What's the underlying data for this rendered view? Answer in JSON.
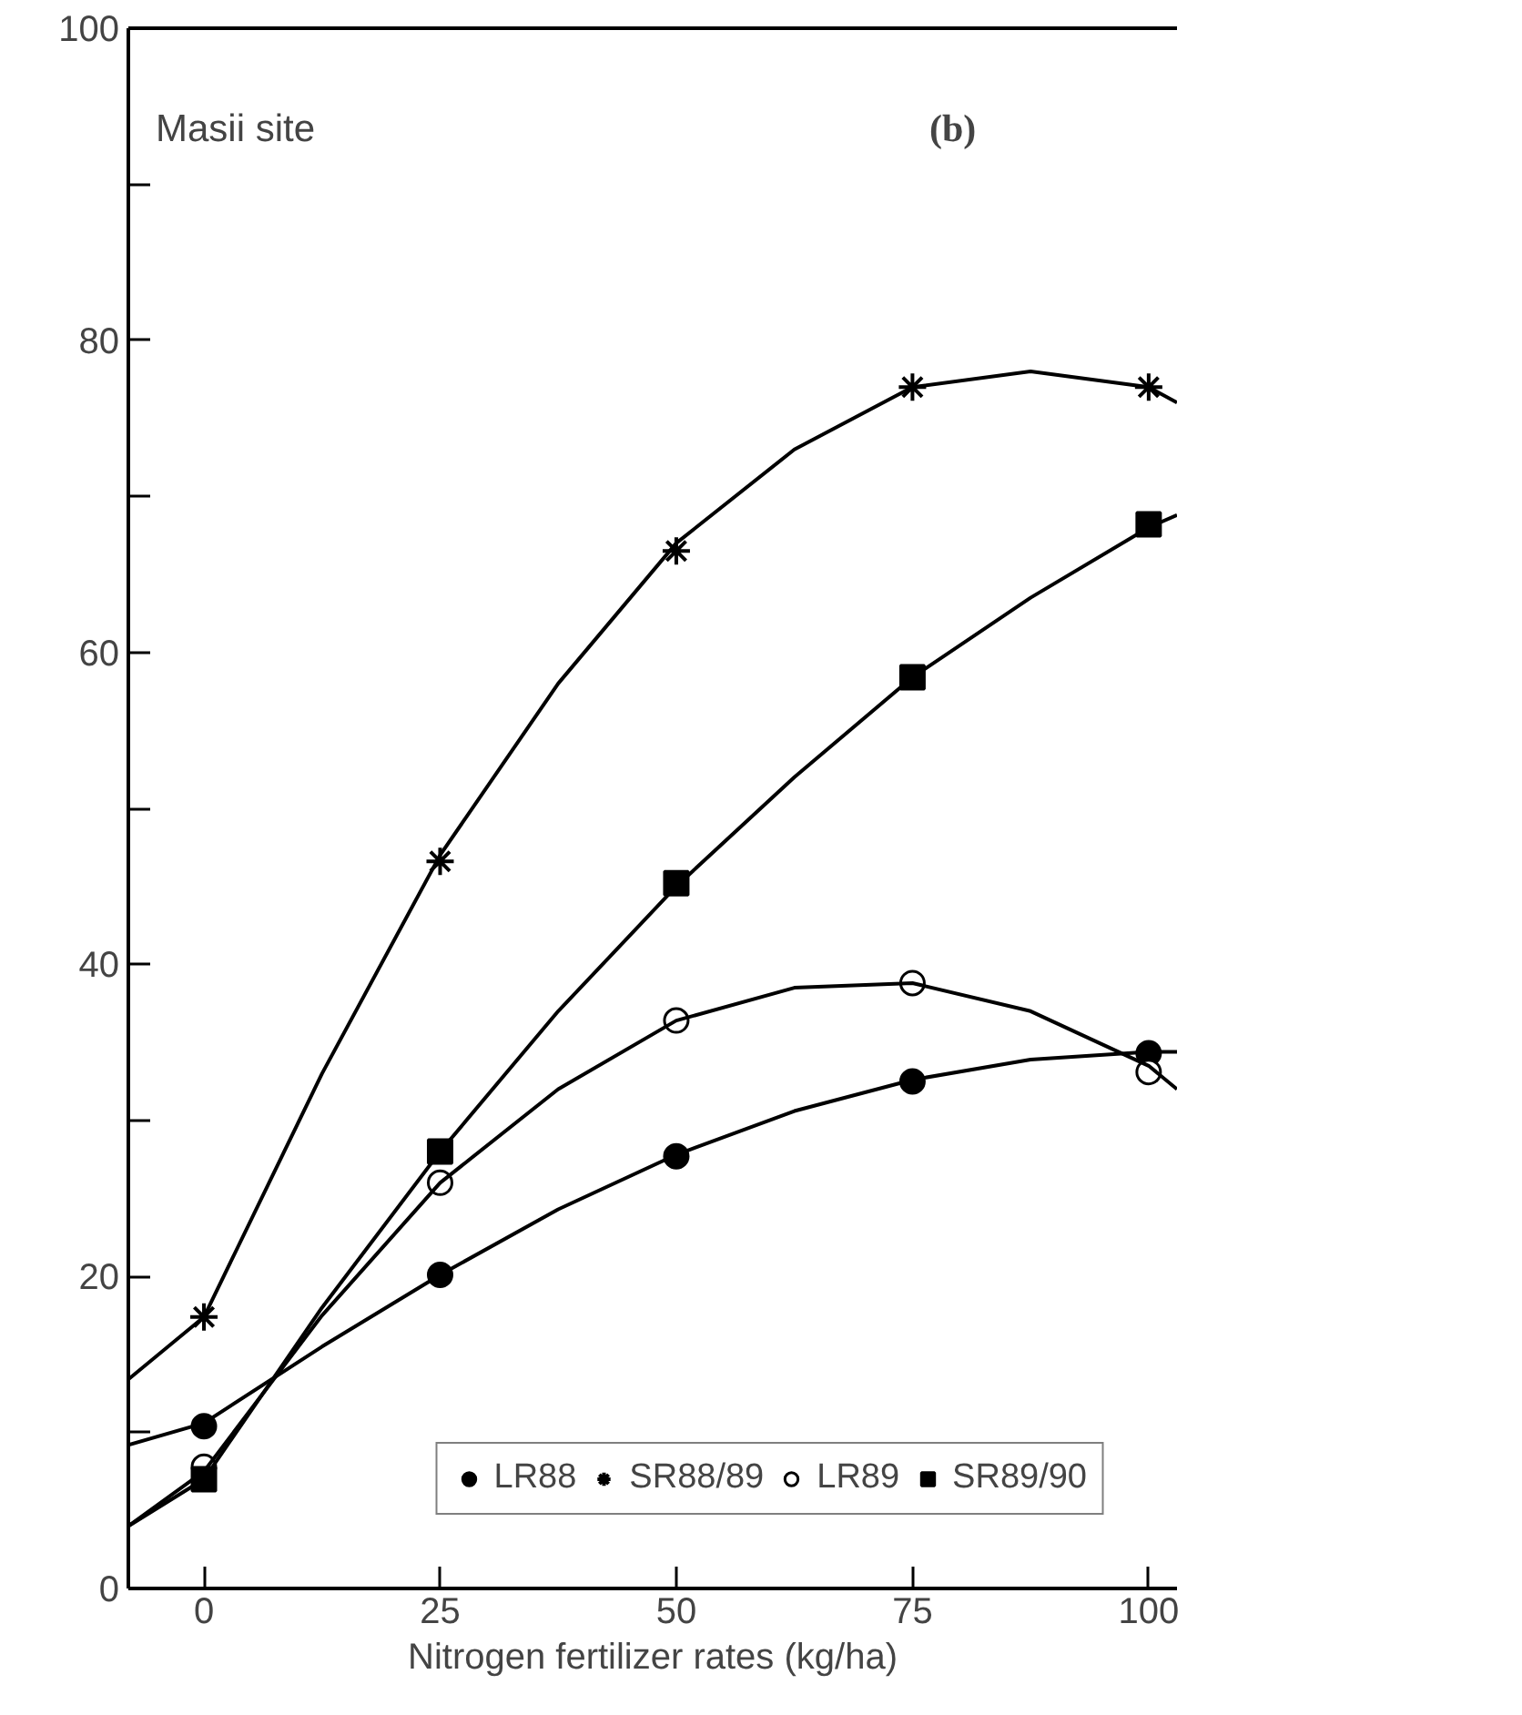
{
  "chart_data": {
    "type": "scatter",
    "xlabel": "Nitrogen fertilizer rates (kg/ha)",
    "annotations": [
      "Masii site",
      "(b)"
    ],
    "x": [
      0,
      25,
      50,
      75,
      100
    ],
    "series": [
      {
        "name": "LR88",
        "color": "#000000",
        "marker": "circle",
        "values": [
          10.4,
          20.1,
          27.7,
          32.5,
          34.3
        ]
      },
      {
        "name": "SR88/89",
        "color": "#000000",
        "marker": "cross",
        "values": [
          17.4,
          46.6,
          66.5,
          77,
          77
        ]
      },
      {
        "name": "LR89",
        "color": "#ffffff",
        "marker": "circle",
        "values": [
          7.8,
          26,
          36.4,
          38.8,
          33.1
        ]
      },
      {
        "name": "SR89/90",
        "color": "#000000",
        "marker": "square",
        "values": [
          7,
          28,
          45.2,
          58.4,
          68.2
        ]
      },
      {
        "type": "line",
        "color": "#000000",
        "x": [
          -8,
          0,
          12.5,
          25,
          37.5,
          50,
          62.5,
          75,
          87.5,
          100,
          103
        ],
        "values": [
          9.2,
          10.6,
          15.5,
          20.1,
          24.3,
          27.8,
          30.6,
          32.6,
          33.9,
          34.4,
          34.4
        ]
      },
      {
        "type": "line",
        "color": "#000000",
        "x": [
          -8,
          0,
          12.5,
          25,
          37.5,
          50,
          62.5,
          75,
          87.5,
          100,
          103
        ],
        "values": [
          13.4,
          17.4,
          33,
          47,
          58,
          67,
          73,
          77,
          78,
          77,
          76
        ]
      },
      {
        "type": "line",
        "color": "#000000",
        "x": [
          -8,
          0,
          12.5,
          25,
          37.5,
          50,
          62.5,
          75,
          87.5,
          100,
          103
        ],
        "values": [
          4,
          7.5,
          17.5,
          26,
          32,
          36.4,
          38.5,
          38.8,
          37,
          33.5,
          32
        ]
      },
      {
        "type": "line",
        "color": "#000000",
        "x": [
          -8,
          0,
          12.5,
          25,
          37.5,
          50,
          62.5,
          75,
          87.5,
          100,
          103
        ],
        "values": [
          4,
          7,
          18,
          28,
          37,
          45,
          52,
          58.4,
          63.5,
          68,
          68.8
        ]
      }
    ],
    "xlim": [
      -8,
      103
    ],
    "ylim": [
      0,
      100
    ],
    "xticks": [
      0,
      25,
      50,
      75,
      100
    ],
    "yticks": [
      0,
      {
        "value": 10,
        "label": null
      },
      20,
      {
        "value": 30,
        "label": null
      },
      40,
      {
        "value": 50,
        "label": null
      },
      60,
      {
        "value": 70,
        "label": null
      },
      80,
      {
        "value": 90,
        "label": null
      },
      100
    ],
    "grid": false,
    "legend": "bottom right",
    "line_style": "solid"
  }
}
